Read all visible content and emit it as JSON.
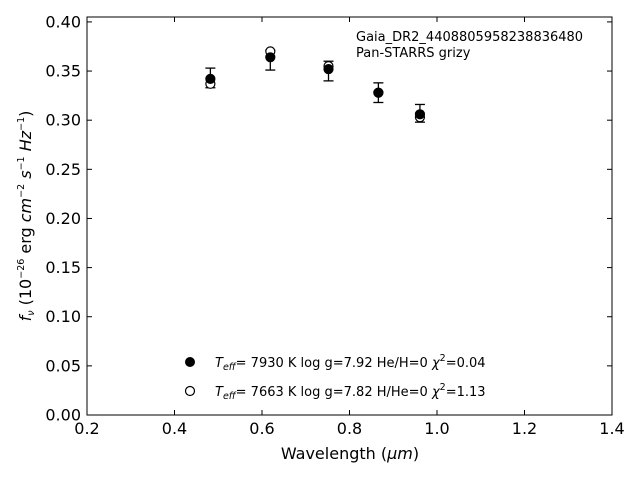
{
  "chart_data": {
    "type": "scatter",
    "xlabel_prefix": "Wavelength (",
    "xlabel_unit": "μm",
    "xlabel_suffix": ")",
    "ylabel_sym": "f",
    "ylabel_sym_sub": "ν",
    "ylabel_open": " (10",
    "ylabel_exp": "−26",
    "ylabel_unit1": " erg ",
    "ylabel_cm": "cm",
    "ylabel_cm_exp": "−2",
    "ylabel_s": "s",
    "ylabel_s_exp": "−1",
    "ylabel_hz": "Hz",
    "ylabel_hz_exp": "−1",
    "ylabel_close": ")",
    "xlim": [
      0.2,
      1.4
    ],
    "ylim": [
      0.0,
      0.405
    ],
    "xticks": [
      "0.2",
      "0.4",
      "0.6",
      "0.8",
      "1.0",
      "1.2",
      "1.4"
    ],
    "yticks": [
      "0.00",
      "0.05",
      "0.10",
      "0.15",
      "0.20",
      "0.25",
      "0.30",
      "0.35",
      "0.40"
    ],
    "annotation_line1": "Gaia_DR2_4408805958238836480",
    "annotation_line2": "Pan-STARRS grizy",
    "observed": {
      "x": [
        0.482,
        0.619,
        0.752,
        0.866,
        0.961
      ],
      "y": [
        0.343,
        0.361,
        0.35,
        0.328,
        0.307
      ],
      "err": [
        0.01,
        0.01,
        0.01,
        0.01,
        0.009
      ]
    },
    "series": [
      {
        "marker": "filled",
        "x": [
          0.482,
          0.619,
          0.752,
          0.866,
          0.961
        ],
        "y": [
          0.342,
          0.364,
          0.352,
          0.328,
          0.306
        ],
        "legend": {
          "teff_sym": "T",
          "teff_sub": "eff",
          "teff_value": "=  7930 K  log g=7.92  He/H=0  ",
          "chi_sym": "χ",
          "chi_sup": "2",
          "chi_value": "=0.04"
        }
      },
      {
        "marker": "open",
        "x": [
          0.482,
          0.619,
          0.752,
          0.866,
          0.961
        ],
        "y": [
          0.337,
          0.37,
          0.355,
          0.328,
          0.303
        ],
        "legend": {
          "teff_sym": "T",
          "teff_sub": "eff",
          "teff_value": "=  7663 K  log g=7.82  H/He=0  ",
          "chi_sym": "χ",
          "chi_sup": "2",
          "chi_value": "=1.13"
        }
      }
    ],
    "grid": false,
    "legend_placement": "lower-center"
  }
}
